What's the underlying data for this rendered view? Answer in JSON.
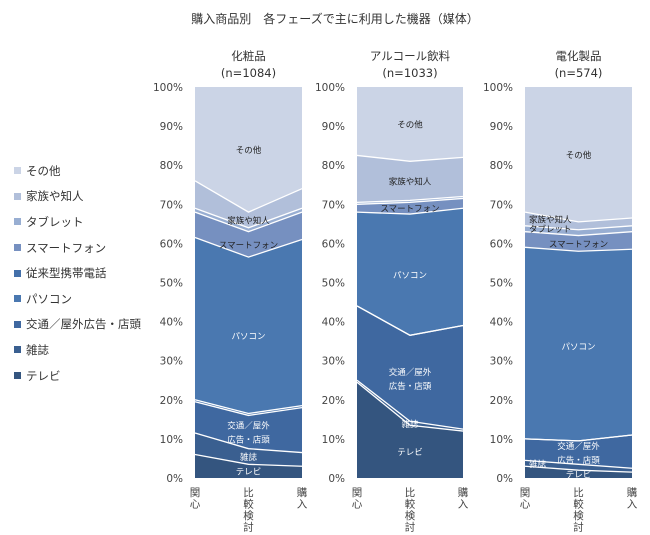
{
  "title": "購入商品別　各フェーズで主に利用した機器（媒体）",
  "legend_order": [
    "その他",
    "家族や知人",
    "タブレット",
    "スマートフォン",
    "従来型携帯電話",
    "パソコン",
    "交通／屋外広告・店頭",
    "雑誌",
    "テレビ"
  ],
  "chart_data": [
    {
      "type": "area",
      "stacked": "percent",
      "title": "化粧品",
      "subtitle": "(n=1084)",
      "categories": [
        "関心",
        "比較検討",
        "購入"
      ],
      "ylim": [
        0,
        100
      ],
      "yticks": [
        "0%",
        "10%",
        "20%",
        "30%",
        "40%",
        "50%",
        "60%",
        "70%",
        "80%",
        "90%",
        "100%"
      ],
      "series": [
        {
          "name": "テレビ",
          "color": "#34557f",
          "values": [
            6,
            3.5,
            3
          ]
        },
        {
          "name": "雑誌",
          "color": "#3a5f90",
          "values": [
            5.5,
            4,
            3.5
          ]
        },
        {
          "name": "交通／屋外広告・店頭",
          "color": "#3f68a0",
          "values": [
            8,
            8.5,
            11.5
          ]
        },
        {
          "name": "従来型携帯電話",
          "color": "#4470aa",
          "values": [
            0.5,
            0.5,
            0.5
          ]
        },
        {
          "name": "パソコン",
          "color": "#4a78b0",
          "values": [
            41.5,
            40,
            42.5
          ]
        },
        {
          "name": "スマートフォン",
          "color": "#7690c0",
          "values": [
            6.5,
            6.5,
            7
          ]
        },
        {
          "name": "タブレット",
          "color": "#98aed2",
          "values": [
            1,
            1,
            1
          ]
        },
        {
          "name": "家族や知人",
          "color": "#b1bfda",
          "values": [
            7,
            4,
            5
          ]
        },
        {
          "name": "その他",
          "color": "#cbd4e6",
          "values": [
            24,
            32,
            26
          ]
        }
      ],
      "area_labels": [
        {
          "series": 0,
          "lines": [
            "テレビ"
          ]
        },
        {
          "series": 1,
          "lines": [
            "雑誌"
          ]
        },
        {
          "series": 2,
          "lines": [
            "交通／屋外",
            "広告・店頭"
          ]
        },
        {
          "series": 4,
          "lines": [
            "パソコン"
          ]
        },
        {
          "series": 5,
          "lines": [
            "スマートフォン"
          ]
        },
        {
          "series": 7,
          "lines": [
            "家族や知人"
          ]
        },
        {
          "series": 8,
          "lines": [
            "その他"
          ]
        }
      ]
    },
    {
      "type": "area",
      "stacked": "percent",
      "title": "アルコール飲料",
      "subtitle": "(n=1033)",
      "categories": [
        "関心",
        "比較検討",
        "購入"
      ],
      "ylim": [
        0,
        100
      ],
      "yticks": [
        "0%",
        "10%",
        "20%",
        "30%",
        "40%",
        "50%",
        "60%",
        "70%",
        "80%",
        "90%",
        "100%"
      ],
      "series": [
        {
          "name": "テレビ",
          "color": "#34557f",
          "values": [
            24.5,
            13.5,
            12
          ]
        },
        {
          "name": "雑誌",
          "color": "#3a5f90",
          "values": [
            0.5,
            1,
            0.5
          ]
        },
        {
          "name": "交通／屋外広告・店頭",
          "color": "#3f68a0",
          "values": [
            19,
            22,
            26.5
          ]
        },
        {
          "name": "従来型携帯電話",
          "color": "#4470aa",
          "values": [
            0,
            0,
            0
          ]
        },
        {
          "name": "パソコン",
          "color": "#4a78b0",
          "values": [
            24,
            31,
            30
          ]
        },
        {
          "name": "スマートフォン",
          "color": "#7690c0",
          "values": [
            2,
            3,
            2.5
          ]
        },
        {
          "name": "タブレット",
          "color": "#98aed2",
          "values": [
            0.5,
            0.5,
            0.5
          ]
        },
        {
          "name": "家族や知人",
          "color": "#b1bfda",
          "values": [
            12,
            10,
            10
          ]
        },
        {
          "name": "その他",
          "color": "#cbd4e6",
          "values": [
            17.5,
            19,
            18
          ]
        }
      ],
      "area_labels": [
        {
          "series": 0,
          "lines": [
            "テレビ"
          ]
        },
        {
          "series": 1,
          "lines": [
            "雑誌"
          ]
        },
        {
          "series": 2,
          "lines": [
            "交通／屋外",
            "広告・店頭"
          ]
        },
        {
          "series": 4,
          "lines": [
            "パソコン"
          ]
        },
        {
          "series": 5,
          "lines": [
            "スマートフォン"
          ]
        },
        {
          "series": 7,
          "lines": [
            "家族や知人"
          ]
        },
        {
          "series": 8,
          "lines": [
            "その他"
          ]
        }
      ]
    },
    {
      "type": "area",
      "stacked": "percent",
      "title": "電化製品",
      "subtitle": "(n=574)",
      "categories": [
        "関心",
        "比較検討",
        "購入"
      ],
      "ylim": [
        0,
        100
      ],
      "yticks": [
        "0%",
        "10%",
        "20%",
        "30%",
        "40%",
        "50%",
        "60%",
        "70%",
        "80%",
        "90%",
        "100%"
      ],
      "series": [
        {
          "name": "テレビ",
          "color": "#34557f",
          "values": [
            3,
            2,
            1.5
          ]
        },
        {
          "name": "雑誌",
          "color": "#3a5f90",
          "values": [
            1.5,
            1.5,
            1
          ]
        },
        {
          "name": "交通／屋外広告・店頭",
          "color": "#3f68a0",
          "values": [
            5.5,
            6,
            8.5
          ]
        },
        {
          "name": "従来型携帯電話",
          "color": "#4470aa",
          "values": [
            0,
            0,
            0
          ]
        },
        {
          "name": "パソコン",
          "color": "#4a78b0",
          "values": [
            49,
            48.5,
            47.5
          ]
        },
        {
          "name": "スマートフォン",
          "color": "#7690c0",
          "values": [
            4,
            4,
            4.5
          ]
        },
        {
          "name": "タブレット",
          "color": "#98aed2",
          "values": [
            1.5,
            1.5,
            1.5
          ]
        },
        {
          "name": "家族や知人",
          "color": "#b1bfda",
          "values": [
            3.5,
            2,
            2
          ]
        },
        {
          "name": "その他",
          "color": "#cbd4e6",
          "values": [
            32,
            34.5,
            33.5
          ]
        }
      ],
      "area_labels": [
        {
          "series": 0,
          "lines": [
            "テレビ"
          ]
        },
        {
          "series": 1,
          "lines": [
            "雑誌"
          ],
          "at": 0
        },
        {
          "series": 2,
          "lines": [
            "交通／屋外",
            "広告・店頭"
          ]
        },
        {
          "series": 4,
          "lines": [
            "パソコン"
          ]
        },
        {
          "series": 5,
          "lines": [
            "スマートフォン"
          ]
        },
        {
          "series": 6,
          "lines": [
            "タブレット"
          ],
          "at": 0
        },
        {
          "series": 7,
          "lines": [
            "家族や知人"
          ],
          "at": 0
        },
        {
          "series": 8,
          "lines": [
            "その他"
          ]
        }
      ]
    }
  ]
}
